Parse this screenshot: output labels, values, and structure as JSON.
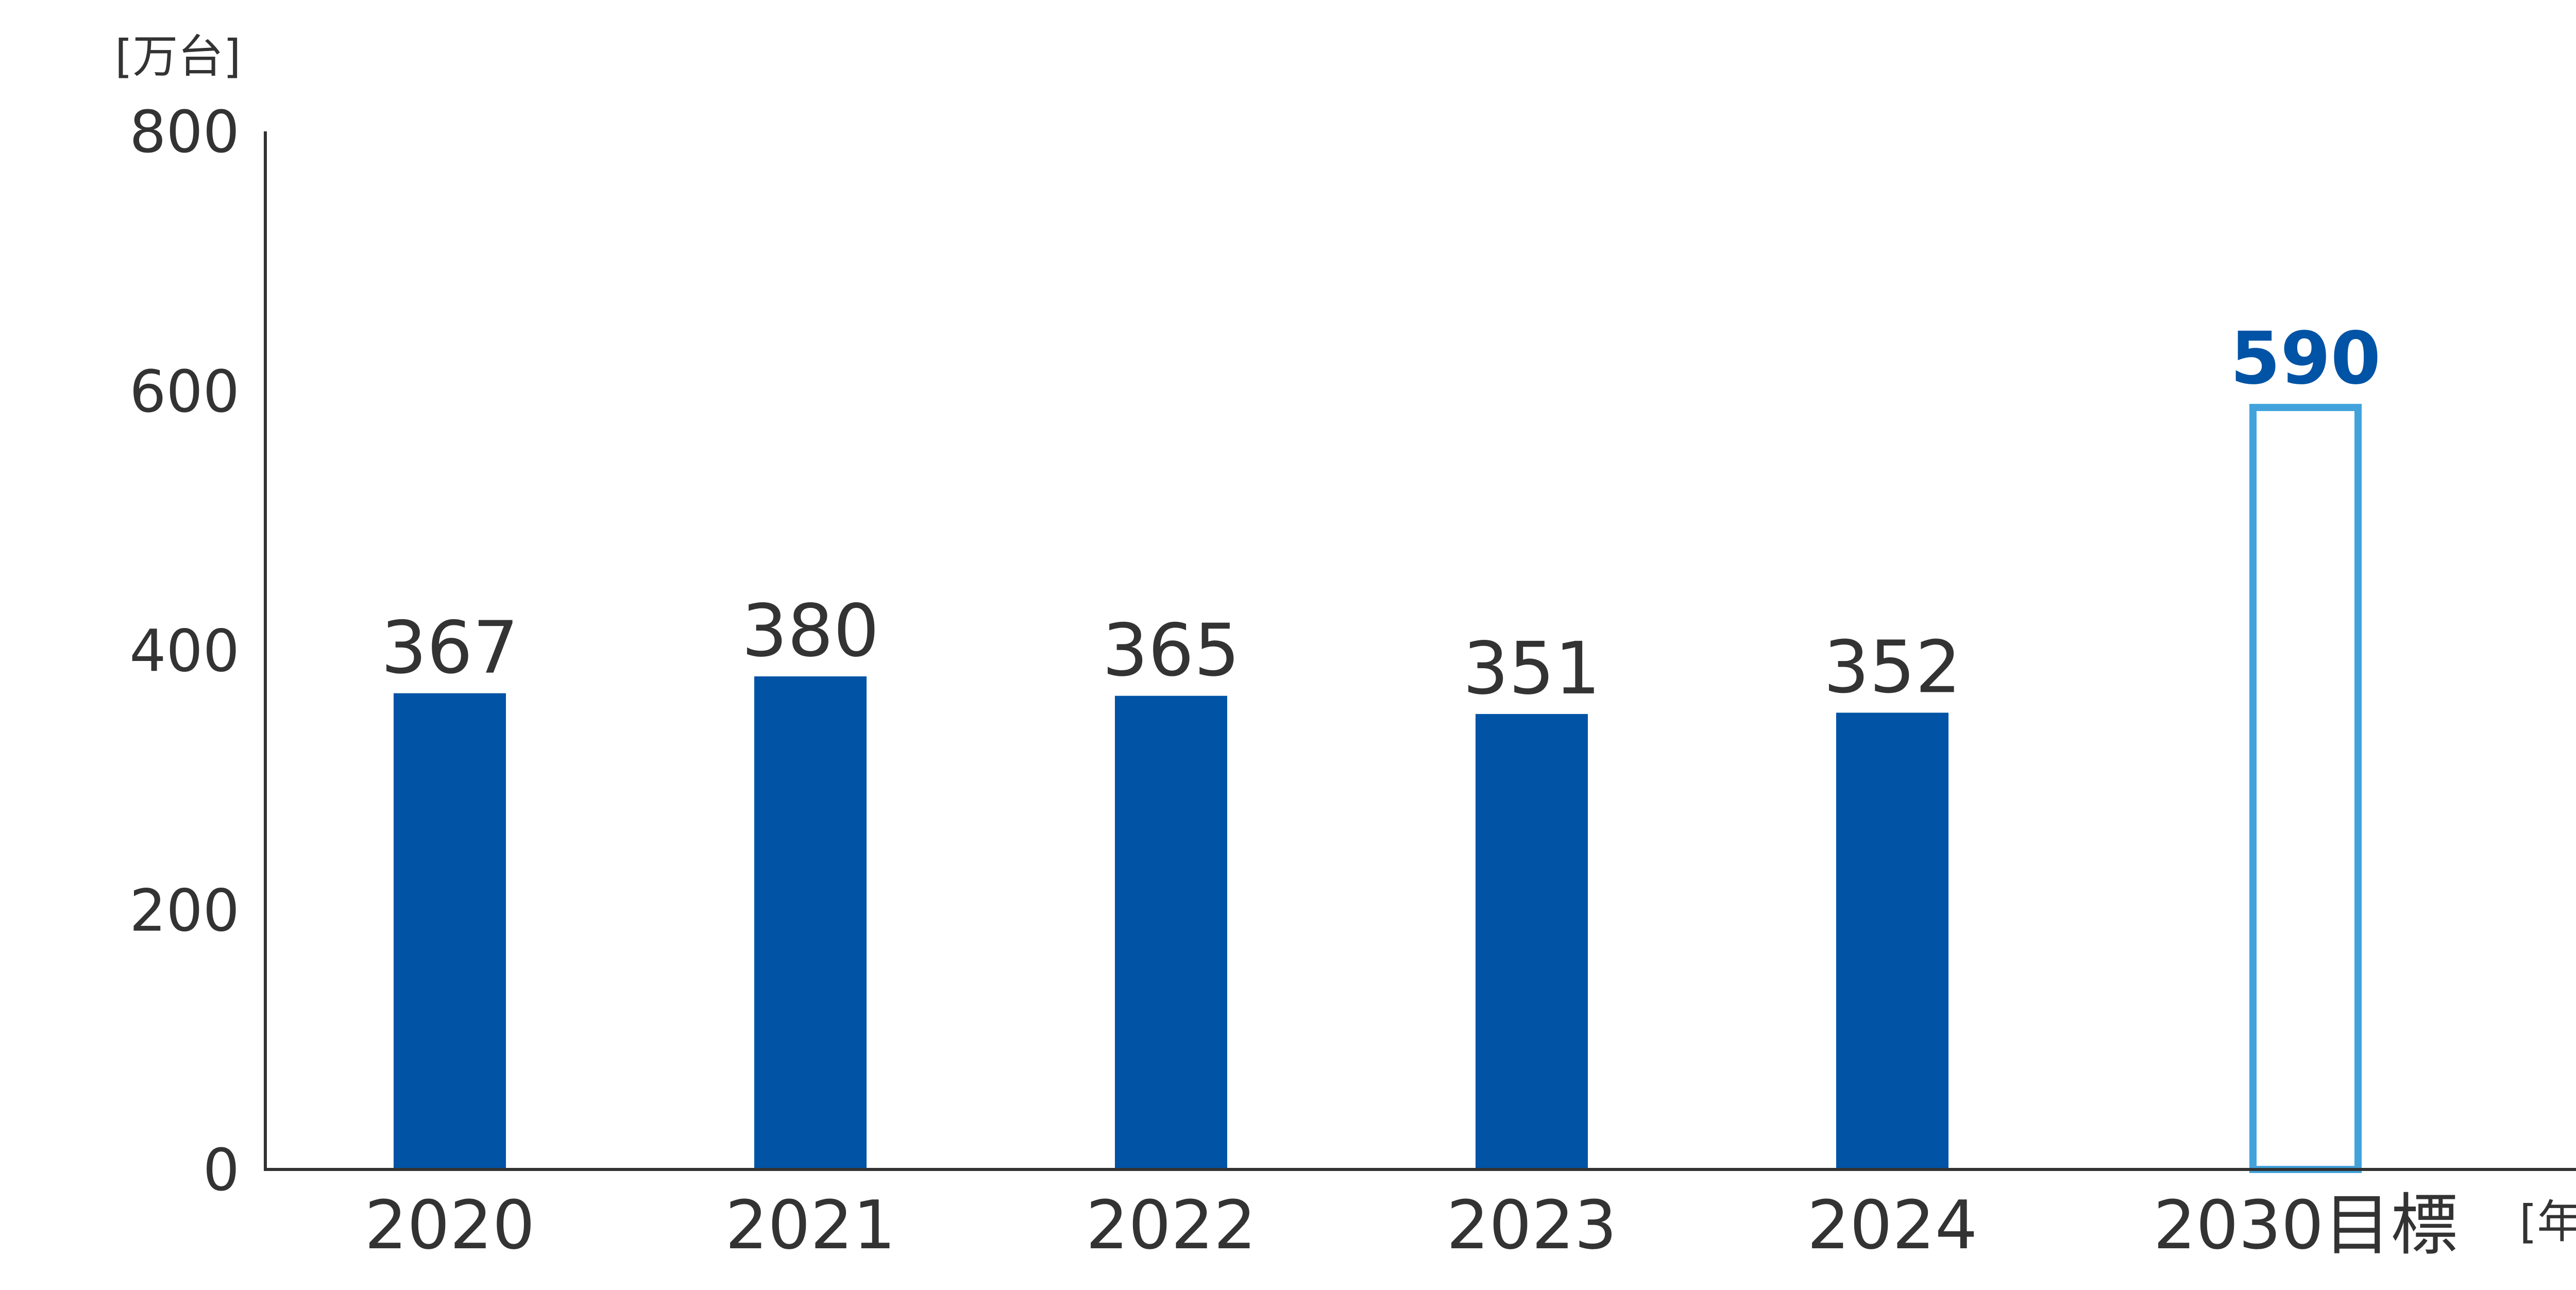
{
  "chart_data": {
    "type": "bar",
    "ylabel": "[万台]",
    "xlabel": "[年度]",
    "ylim": [
      0,
      800
    ],
    "yticks": [
      0,
      200,
      400,
      600,
      800
    ],
    "categories": [
      "2020",
      "2021",
      "2022",
      "2023",
      "2024",
      "2030目標"
    ],
    "values": [
      367,
      380,
      365,
      351,
      352,
      590
    ],
    "bar_styles": [
      "filled",
      "filled",
      "filled",
      "filled",
      "filled",
      "outline"
    ],
    "value_labels": [
      "367",
      "380",
      "365",
      "351",
      "352",
      "590"
    ],
    "colors": {
      "bar_fill": "#0053A5",
      "target_outline": "#42A3DC",
      "target_label": "#0053A5",
      "text": "#333333",
      "axis": "#333333"
    }
  }
}
